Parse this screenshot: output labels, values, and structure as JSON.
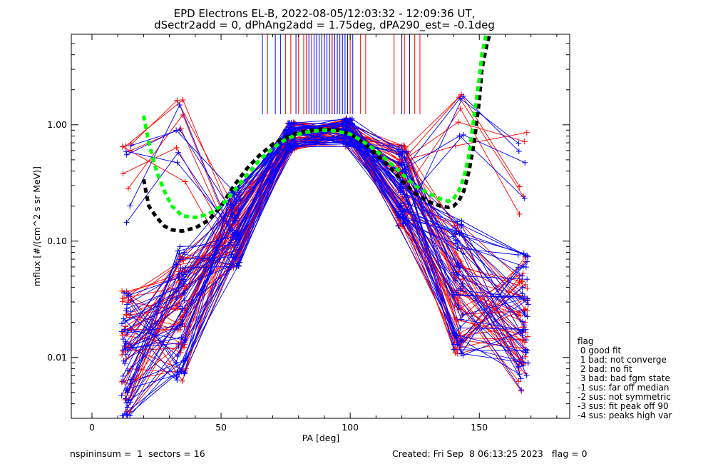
{
  "chart_data": {
    "type": "line",
    "title_line1": "EPD Electrons EL-B, 2022-08-05/12:03:32 - 12:09:36 UT,",
    "title_line2": "dSectr2add = 0, dPhAng2add = 1.75deg, dPA290_est=  -0.1deg",
    "xlabel": "PA [deg]",
    "ylabel": "mflux [#/(cm^2 s sr MeV)]",
    "xlim": [
      -8,
      185
    ],
    "ylim": [
      0.003,
      6.0
    ],
    "yscale": "log",
    "x_ticks": [
      0,
      50,
      100,
      150
    ],
    "x_tick_labels": [
      "0",
      "50",
      "100",
      "150"
    ],
    "y_ticks": [
      0.01,
      0.1,
      1.0
    ],
    "y_tick_labels": [
      "0.01",
      "0.10",
      "1.00"
    ],
    "colors": {
      "spins_a": "#0000ff",
      "spins_b": "#ff0000",
      "fit_black": "#000000",
      "fit_green": "#00ff00"
    },
    "pa_sectors": [
      13.5,
      34.5,
      55.5,
      77.0,
      99.0,
      120.5,
      142.0,
      167.0
    ],
    "curve_template_values": [
      0.01,
      0.024,
      0.13,
      0.8,
      0.86,
      0.3,
      0.038,
      0.02
    ],
    "vertical_marker_pa_blue": [
      66,
      71,
      73,
      79,
      84,
      86,
      87,
      88,
      89,
      90,
      91,
      92,
      93,
      94,
      95,
      96,
      97,
      98,
      99,
      101,
      120,
      123
    ],
    "vertical_marker_pa_red": [
      68,
      75,
      77,
      80,
      82,
      83,
      85,
      93,
      100,
      104,
      106,
      117,
      121,
      125,
      127
    ],
    "fit_black": {
      "x": [
        20,
        22,
        25,
        28,
        31,
        35,
        40,
        45,
        50,
        55,
        60,
        65,
        70,
        75,
        80,
        85,
        90,
        95,
        100,
        105,
        110,
        115,
        120,
        125,
        130,
        135,
        138,
        140,
        142,
        144,
        146,
        148,
        150,
        151,
        153,
        155
      ],
      "y": [
        0.34,
        0.2,
        0.16,
        0.135,
        0.125,
        0.122,
        0.13,
        0.15,
        0.2,
        0.3,
        0.42,
        0.55,
        0.68,
        0.78,
        0.86,
        0.9,
        0.92,
        0.9,
        0.84,
        0.7,
        0.56,
        0.44,
        0.33,
        0.26,
        0.22,
        0.2,
        0.195,
        0.2,
        0.22,
        0.27,
        0.4,
        0.7,
        1.6,
        3.0,
        5.0,
        7.0
      ]
    },
    "fit_green": {
      "x": [
        20,
        22,
        25,
        28,
        31,
        35,
        40,
        45,
        50,
        55,
        60,
        65,
        70,
        75,
        80,
        85,
        90,
        95,
        100,
        105,
        110,
        115,
        120,
        125,
        130,
        135,
        138,
        140,
        142,
        144,
        146,
        148,
        150,
        151,
        153,
        155
      ],
      "y": [
        1.2,
        0.7,
        0.4,
        0.27,
        0.2,
        0.165,
        0.16,
        0.17,
        0.2,
        0.27,
        0.37,
        0.5,
        0.63,
        0.75,
        0.83,
        0.88,
        0.9,
        0.88,
        0.83,
        0.72,
        0.6,
        0.48,
        0.38,
        0.3,
        0.26,
        0.23,
        0.22,
        0.23,
        0.27,
        0.35,
        0.55,
        1.2,
        2.5,
        4.0,
        6.5,
        9.0
      ]
    }
  },
  "legend": {
    "title": "flag",
    "entries": [
      " 0 good fit",
      " 1 bad: not converge",
      " 2 bad: no fit",
      " 3 bad: bad fgm state",
      "-1 sus: far off median",
      "-2 sus: not symmetric",
      "-3 sus: fit peak off 90",
      "-4 sus: peaks high var"
    ]
  },
  "footer": {
    "left": "nspininsum =  1  sectors = 16",
    "right": "Created: Fri Sep  8 06:13:25 2023   flag = 0"
  }
}
